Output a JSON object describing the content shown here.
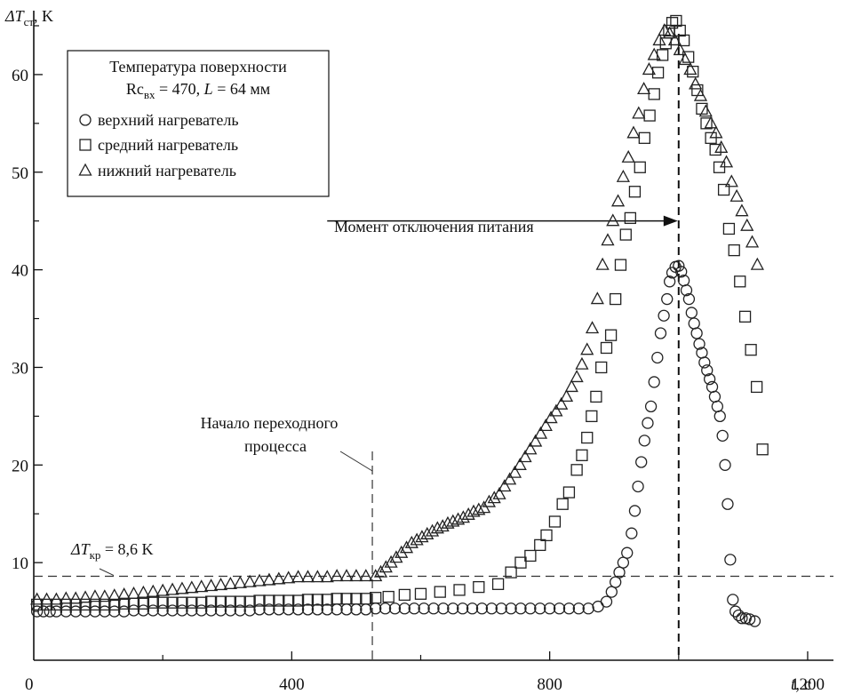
{
  "chart_data": {
    "type": "scatter",
    "ylabel": "ΔTст, K",
    "ylabel_main": "ΔT",
    "ylabel_sub": "ст",
    "ylabel_unit": ", K",
    "xlabel": "t, c",
    "xlabel_var": "t",
    "xlabel_unit": ", c",
    "xlim": [
      0,
      1240
    ],
    "ylim": [
      0,
      66
    ],
    "x_ticks": [
      0,
      400,
      800,
      1200
    ],
    "x_tick_labels": [
      "0",
      "400",
      "800",
      "1200"
    ],
    "y_ticks": [
      10,
      20,
      30,
      40,
      50,
      60
    ],
    "y_tick_labels": [
      "10",
      "20",
      "30",
      "40",
      "50",
      "60"
    ],
    "grid": false,
    "legend": {
      "placement": "top-left",
      "title_line1": "Температура поверхности",
      "title_line2": "Rcвх = 470, L = 64 мм",
      "t2_rc": "Rc",
      "t2_sub": "вх",
      "t2_mid": " = 470, ",
      "t2_L": "L",
      "t2_end": " = 64 мм"
    },
    "series": [
      {
        "name": "верхний нагреватель",
        "marker": "circle",
        "points": [
          [
            5,
            5
          ],
          [
            15,
            5
          ],
          [
            25,
            5
          ],
          [
            35,
            5
          ],
          [
            50,
            5
          ],
          [
            65,
            5
          ],
          [
            80,
            5
          ],
          [
            95,
            5
          ],
          [
            110,
            5
          ],
          [
            125,
            5
          ],
          [
            140,
            5
          ],
          [
            155,
            5.1
          ],
          [
            170,
            5.1
          ],
          [
            185,
            5.1
          ],
          [
            200,
            5.1
          ],
          [
            215,
            5.1
          ],
          [
            230,
            5.1
          ],
          [
            245,
            5.1
          ],
          [
            260,
            5.1
          ],
          [
            275,
            5.1
          ],
          [
            290,
            5.1
          ],
          [
            305,
            5.1
          ],
          [
            320,
            5.1
          ],
          [
            335,
            5.1
          ],
          [
            350,
            5.2
          ],
          [
            365,
            5.2
          ],
          [
            380,
            5.2
          ],
          [
            395,
            5.2
          ],
          [
            410,
            5.2
          ],
          [
            425,
            5.2
          ],
          [
            440,
            5.2
          ],
          [
            455,
            5.2
          ],
          [
            470,
            5.2
          ],
          [
            485,
            5.2
          ],
          [
            500,
            5.2
          ],
          [
            515,
            5.2
          ],
          [
            530,
            5.3
          ],
          [
            545,
            5.3
          ],
          [
            560,
            5.3
          ],
          [
            575,
            5.3
          ],
          [
            590,
            5.3
          ],
          [
            605,
            5.3
          ],
          [
            620,
            5.3
          ],
          [
            635,
            5.3
          ],
          [
            650,
            5.3
          ],
          [
            665,
            5.3
          ],
          [
            680,
            5.3
          ],
          [
            695,
            5.3
          ],
          [
            710,
            5.3
          ],
          [
            725,
            5.3
          ],
          [
            740,
            5.3
          ],
          [
            755,
            5.3
          ],
          [
            770,
            5.3
          ],
          [
            785,
            5.3
          ],
          [
            800,
            5.3
          ],
          [
            815,
            5.3
          ],
          [
            830,
            5.3
          ],
          [
            845,
            5.3
          ],
          [
            860,
            5.3
          ],
          [
            875,
            5.5
          ],
          [
            888,
            6
          ],
          [
            896,
            7
          ],
          [
            902,
            8
          ],
          [
            908,
            9
          ],
          [
            914,
            10
          ],
          [
            920,
            11
          ],
          [
            927,
            13
          ],
          [
            932,
            15.3
          ],
          [
            937,
            17.8
          ],
          [
            942,
            20.3
          ],
          [
            947,
            22.5
          ],
          [
            952,
            24.3
          ],
          [
            957,
            26
          ],
          [
            962,
            28.5
          ],
          [
            967,
            31
          ],
          [
            972,
            33.5
          ],
          [
            977,
            35.3
          ],
          [
            982,
            37
          ],
          [
            986,
            38.8
          ],
          [
            990,
            39.7
          ],
          [
            995,
            40.3
          ],
          [
            1000,
            40.4
          ],
          [
            1004,
            39.8
          ],
          [
            1008,
            38.9
          ],
          [
            1012,
            37.9
          ],
          [
            1016,
            37
          ],
          [
            1020,
            35.6
          ],
          [
            1024,
            34.5
          ],
          [
            1028,
            33.5
          ],
          [
            1032,
            32.4
          ],
          [
            1036,
            31.5
          ],
          [
            1040,
            30.5
          ],
          [
            1044,
            29.7
          ],
          [
            1048,
            28.8
          ],
          [
            1052,
            28
          ],
          [
            1056,
            27
          ],
          [
            1060,
            26
          ],
          [
            1064,
            25
          ],
          [
            1068,
            23
          ],
          [
            1072,
            20
          ],
          [
            1076,
            16
          ],
          [
            1080,
            10.3
          ],
          [
            1084,
            6.2
          ],
          [
            1088,
            5
          ],
          [
            1093,
            4.6
          ],
          [
            1098,
            4.3
          ],
          [
            1104,
            4.3
          ],
          [
            1110,
            4.2
          ],
          [
            1118,
            4
          ]
        ]
      },
      {
        "name": "средний нагреватель",
        "marker": "square",
        "points": [
          [
            5,
            5.7
          ],
          [
            20,
            5.7
          ],
          [
            35,
            5.7
          ],
          [
            50,
            5.7
          ],
          [
            65,
            5.7
          ],
          [
            80,
            5.7
          ],
          [
            95,
            5.7
          ],
          [
            110,
            5.7
          ],
          [
            125,
            5.7
          ],
          [
            140,
            5.8
          ],
          [
            155,
            5.8
          ],
          [
            170,
            5.8
          ],
          [
            185,
            5.9
          ],
          [
            200,
            5.9
          ],
          [
            215,
            5.9
          ],
          [
            230,
            5.9
          ],
          [
            245,
            5.9
          ],
          [
            260,
            5.9
          ],
          [
            275,
            6
          ],
          [
            290,
            6
          ],
          [
            305,
            6
          ],
          [
            320,
            6
          ],
          [
            335,
            6
          ],
          [
            350,
            6.1
          ],
          [
            365,
            6.1
          ],
          [
            380,
            6.1
          ],
          [
            395,
            6.1
          ],
          [
            410,
            6.1
          ],
          [
            425,
            6.2
          ],
          [
            440,
            6.2
          ],
          [
            455,
            6.2
          ],
          [
            470,
            6.3
          ],
          [
            485,
            6.3
          ],
          [
            500,
            6.3
          ],
          [
            515,
            6.3
          ],
          [
            530,
            6.4
          ],
          [
            550,
            6.5
          ],
          [
            575,
            6.7
          ],
          [
            600,
            6.8
          ],
          [
            630,
            7
          ],
          [
            660,
            7.2
          ],
          [
            690,
            7.5
          ],
          [
            720,
            7.8
          ],
          [
            740,
            9
          ],
          [
            755,
            10
          ],
          [
            770,
            10.7
          ],
          [
            785,
            11.8
          ],
          [
            795,
            12.8
          ],
          [
            808,
            14.2
          ],
          [
            820,
            16
          ],
          [
            830,
            17.2
          ],
          [
            842,
            19.5
          ],
          [
            850,
            21
          ],
          [
            858,
            22.8
          ],
          [
            865,
            25
          ],
          [
            872,
            27
          ],
          [
            880,
            30
          ],
          [
            888,
            32
          ],
          [
            895,
            33.3
          ],
          [
            902,
            37
          ],
          [
            910,
            40.5
          ],
          [
            918,
            43.6
          ],
          [
            925,
            45.3
          ],
          [
            932,
            48
          ],
          [
            940,
            50.5
          ],
          [
            947,
            53.5
          ],
          [
            955,
            55.8
          ],
          [
            962,
            58
          ],
          [
            968,
            60.2
          ],
          [
            975,
            62
          ],
          [
            980,
            63.2
          ],
          [
            985,
            64.5
          ],
          [
            990,
            65.3
          ],
          [
            996,
            65.5
          ],
          [
            1002,
            64.5
          ],
          [
            1008,
            63.5
          ],
          [
            1015,
            61.8
          ],
          [
            1022,
            60.3
          ],
          [
            1029,
            58.4
          ],
          [
            1036,
            56.5
          ],
          [
            1043,
            55
          ],
          [
            1050,
            53.5
          ],
          [
            1057,
            52.3
          ],
          [
            1063,
            50.5
          ],
          [
            1070,
            48.2
          ],
          [
            1078,
            44.2
          ],
          [
            1086,
            42
          ],
          [
            1095,
            38.8
          ],
          [
            1103,
            35.2
          ],
          [
            1112,
            31.8
          ],
          [
            1121,
            28
          ],
          [
            1130,
            21.6
          ]
        ]
      },
      {
        "name": "нижний нагреватель",
        "marker": "triangle",
        "points": [
          [
            5,
            6.2
          ],
          [
            20,
            6.2
          ],
          [
            35,
            6.2
          ],
          [
            50,
            6.3
          ],
          [
            65,
            6.3
          ],
          [
            80,
            6.4
          ],
          [
            95,
            6.5
          ],
          [
            110,
            6.5
          ],
          [
            125,
            6.6
          ],
          [
            140,
            6.7
          ],
          [
            155,
            6.8
          ],
          [
            170,
            6.9
          ],
          [
            185,
            7
          ],
          [
            200,
            7.1
          ],
          [
            215,
            7.2
          ],
          [
            230,
            7.3
          ],
          [
            245,
            7.4
          ],
          [
            260,
            7.5
          ],
          [
            275,
            7.6
          ],
          [
            290,
            7.7
          ],
          [
            305,
            7.8
          ],
          [
            320,
            7.9
          ],
          [
            335,
            8
          ],
          [
            350,
            8.1
          ],
          [
            365,
            8.2
          ],
          [
            380,
            8.3
          ],
          [
            395,
            8.4
          ],
          [
            410,
            8.5
          ],
          [
            425,
            8.5
          ],
          [
            440,
            8.5
          ],
          [
            455,
            8.5
          ],
          [
            470,
            8.6
          ],
          [
            485,
            8.6
          ],
          [
            500,
            8.6
          ],
          [
            515,
            8.6
          ],
          [
            530,
            8.6
          ],
          [
            538,
            9
          ],
          [
            546,
            9.5
          ],
          [
            554,
            10
          ],
          [
            562,
            10.5
          ],
          [
            570,
            11
          ],
          [
            578,
            11.5
          ],
          [
            586,
            12
          ],
          [
            594,
            12.3
          ],
          [
            602,
            12.6
          ],
          [
            610,
            12.9
          ],
          [
            618,
            13.2
          ],
          [
            626,
            13.5
          ],
          [
            634,
            13.7
          ],
          [
            642,
            14
          ],
          [
            650,
            14.2
          ],
          [
            658,
            14.4
          ],
          [
            666,
            14.6
          ],
          [
            674,
            14.9
          ],
          [
            682,
            15.2
          ],
          [
            690,
            15.4
          ],
          [
            698,
            15.6
          ],
          [
            706,
            16.2
          ],
          [
            714,
            16.6
          ],
          [
            722,
            17
          ],
          [
            730,
            17.8
          ],
          [
            738,
            18.5
          ],
          [
            746,
            19.2
          ],
          [
            754,
            20
          ],
          [
            762,
            20.8
          ],
          [
            770,
            21.6
          ],
          [
            778,
            22.4
          ],
          [
            786,
            23.2
          ],
          [
            794,
            24
          ],
          [
            802,
            24.8
          ],
          [
            810,
            25.5
          ],
          [
            818,
            26.2
          ],
          [
            826,
            27
          ],
          [
            834,
            28
          ],
          [
            842,
            29
          ],
          [
            850,
            30.3
          ],
          [
            858,
            31.8
          ],
          [
            866,
            34
          ],
          [
            874,
            37
          ],
          [
            882,
            40.5
          ],
          [
            890,
            43
          ],
          [
            898,
            45
          ],
          [
            906,
            47
          ],
          [
            914,
            49.5
          ],
          [
            922,
            51.5
          ],
          [
            930,
            54
          ],
          [
            938,
            56
          ],
          [
            946,
            58.5
          ],
          [
            954,
            60.5
          ],
          [
            962,
            62
          ],
          [
            970,
            63.5
          ],
          [
            978,
            64.5
          ],
          [
            986,
            64.2
          ],
          [
            994,
            63.5
          ],
          [
            1002,
            62.5
          ],
          [
            1010,
            61.5
          ],
          [
            1018,
            60.5
          ],
          [
            1026,
            59
          ],
          [
            1034,
            57.8
          ],
          [
            1042,
            56.2
          ],
          [
            1050,
            55
          ],
          [
            1058,
            54
          ],
          [
            1066,
            52.5
          ],
          [
            1074,
            51
          ],
          [
            1082,
            49
          ],
          [
            1090,
            47.5
          ],
          [
            1098,
            46
          ],
          [
            1106,
            44.5
          ],
          [
            1114,
            42.8
          ],
          [
            1122,
            40.5
          ]
        ]
      }
    ],
    "annotations": {
      "threshold_label": "ΔTкр = 8,6 K",
      "threshold_main": "ΔT",
      "threshold_sub": "кр",
      "threshold_value_text": " = 8,6 K",
      "threshold_value": 8.6,
      "transition_line1": "Начало переходного",
      "transition_line2": "процесса",
      "transition_x": 525,
      "power_off_label": "Момент отключения питания",
      "power_off_x": 1000,
      "power_off_arrow_from_x": 455,
      "power_off_arrow_y": 45
    }
  }
}
